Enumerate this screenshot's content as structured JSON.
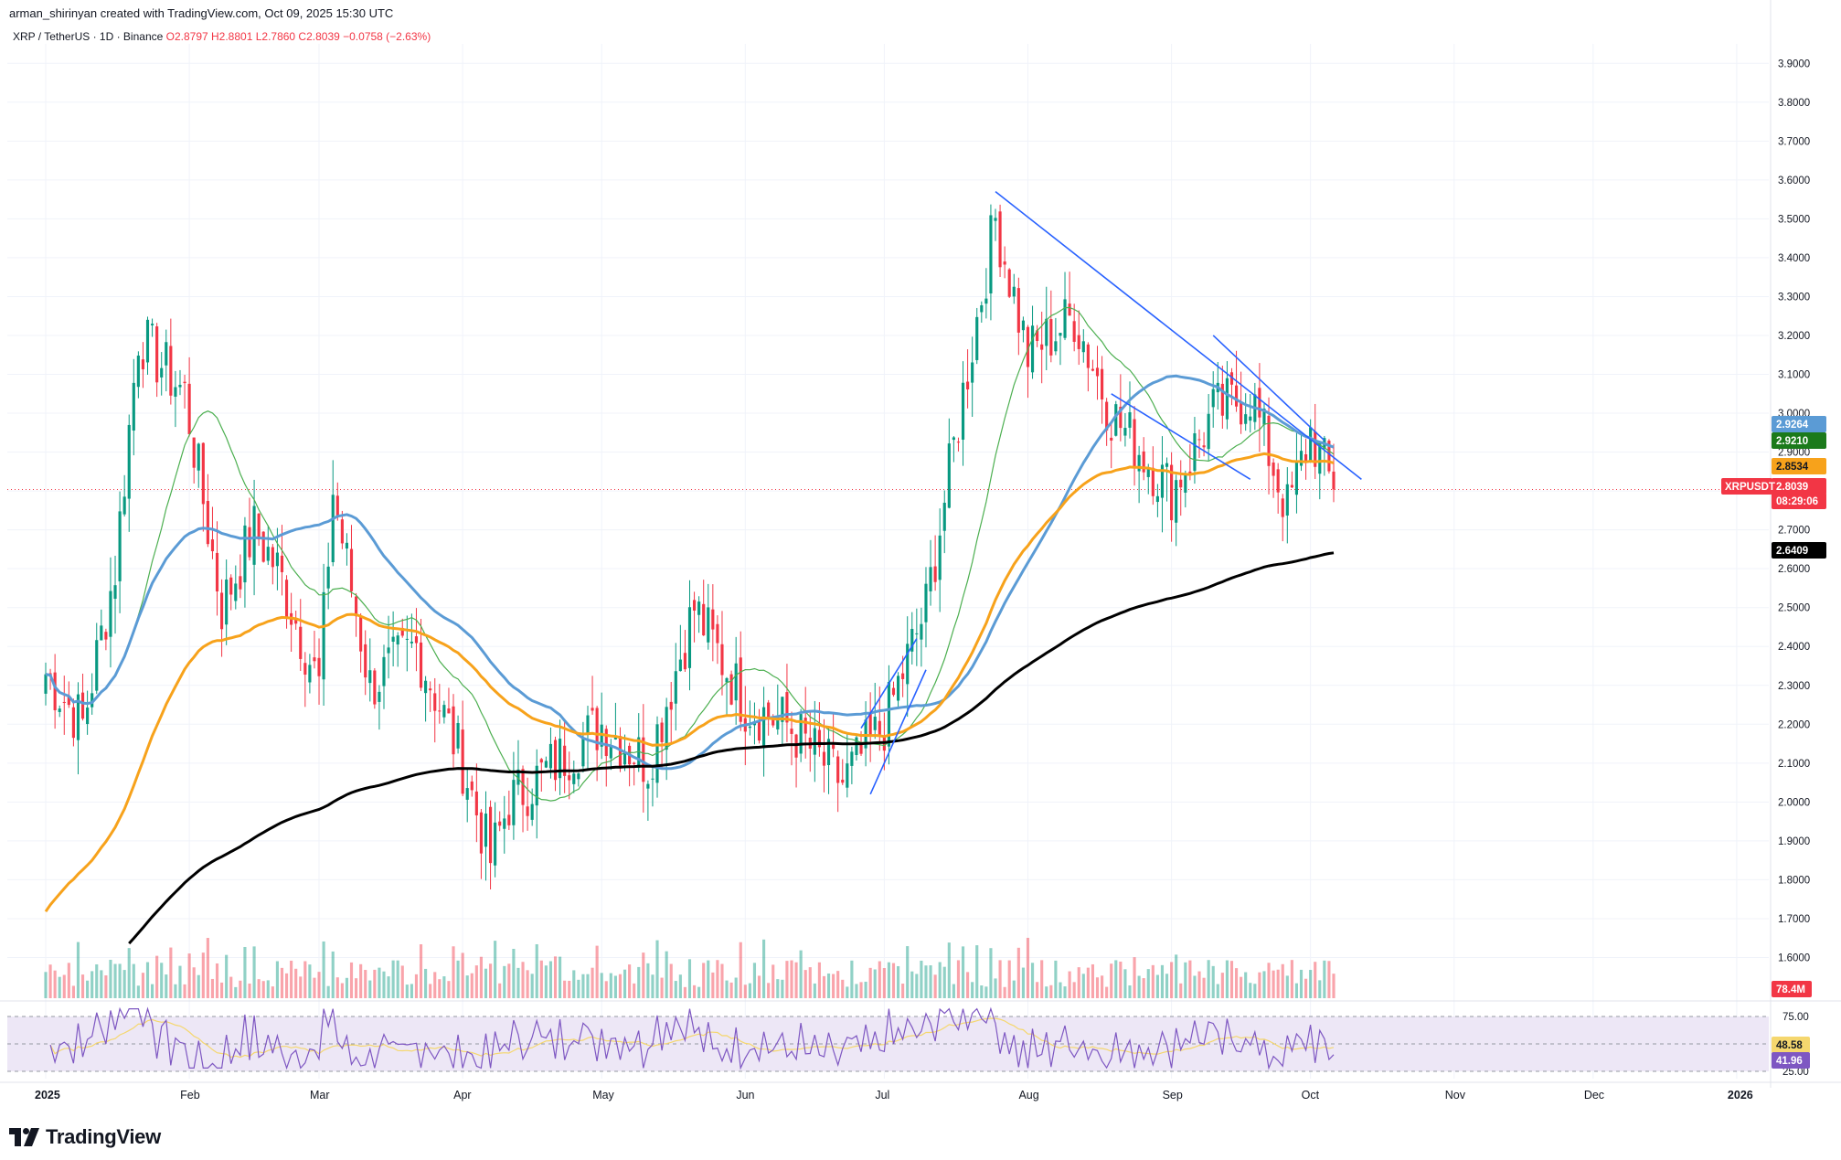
{
  "header": {
    "created_line": "arman_shirinyan created with TradingView.com, Oct 09, 2025 15:30 UTC",
    "symbol": "XRP / TetherUS · 1D · Binance",
    "ohlc": "O2.8797 H2.8801 L2.7860 C2.8039 −0.0758 (−2.63%)"
  },
  "brand": {
    "name": "TradingView",
    "logo_icon": "tradingview-logo-icon"
  },
  "colors": {
    "up": "#089981",
    "down": "#f23645",
    "ma_fast": "#4caf50",
    "ma_mid": "#5b9bd5",
    "ma_slow_orange": "#f7a21b",
    "ma_200": "#000000",
    "trendline": "#2962ff",
    "rsi": "#7e57c2",
    "rsi_bg": "#ede7f6"
  },
  "chart_data": {
    "type": "candlestick",
    "symbol": "XRPUSDT",
    "timeframe": "1D",
    "ylim": [
      1.5,
      3.95
    ],
    "y_ticks": [
      "3.9000",
      "3.8000",
      "3.7000",
      "3.6000",
      "3.5000",
      "3.4000",
      "3.3000",
      "3.2000",
      "3.1000",
      "3.0000",
      "2.9000",
      "2.8000",
      "2.7000",
      "2.6000",
      "2.5000",
      "2.4000",
      "2.3000",
      "2.2000",
      "2.1000",
      "2.0000",
      "1.9000",
      "1.8000",
      "1.7000",
      "1.6000"
    ],
    "x_ticks": [
      "2025",
      "Feb",
      "Mar",
      "Apr",
      "May",
      "Jun",
      "Jul",
      "Aug",
      "Sep",
      "Oct",
      "Nov",
      "Dec",
      "2026"
    ],
    "x_tick_day_index": [
      0,
      31,
      59,
      90,
      120,
      151,
      181,
      212,
      243,
      273,
      304,
      334,
      365
    ],
    "candles_monthly_keypoints": [
      {
        "day": 0,
        "close": 2.33
      },
      {
        "day": 8,
        "close": 2.2
      },
      {
        "day": 15,
        "close": 2.6
      },
      {
        "day": 20,
        "close": 3.2
      },
      {
        "day": 30,
        "close": 3.05
      },
      {
        "day": 38,
        "close": 2.5
      },
      {
        "day": 45,
        "close": 2.7
      },
      {
        "day": 50,
        "close": 2.6
      },
      {
        "day": 59,
        "close": 2.3
      },
      {
        "day": 62,
        "close": 2.8
      },
      {
        "day": 70,
        "close": 2.3
      },
      {
        "day": 80,
        "close": 2.4
      },
      {
        "day": 90,
        "close": 2.1
      },
      {
        "day": 96,
        "close": 1.85
      },
      {
        "day": 100,
        "close": 2.0
      },
      {
        "day": 110,
        "close": 2.1
      },
      {
        "day": 120,
        "close": 2.2
      },
      {
        "day": 130,
        "close": 2.1
      },
      {
        "day": 140,
        "close": 2.5
      },
      {
        "day": 151,
        "close": 2.25
      },
      {
        "day": 160,
        "close": 2.2
      },
      {
        "day": 172,
        "close": 2.05
      },
      {
        "day": 181,
        "close": 2.2
      },
      {
        "day": 190,
        "close": 2.5
      },
      {
        "day": 198,
        "close": 3.05
      },
      {
        "day": 205,
        "close": 3.5
      },
      {
        "day": 212,
        "close": 3.15
      },
      {
        "day": 222,
        "close": 3.25
      },
      {
        "day": 230,
        "close": 3.0
      },
      {
        "day": 243,
        "close": 2.8
      },
      {
        "day": 252,
        "close": 3.0
      },
      {
        "day": 260,
        "close": 3.05
      },
      {
        "day": 268,
        "close": 2.75
      },
      {
        "day": 273,
        "close": 2.95
      },
      {
        "day": 278,
        "close": 2.8039
      }
    ],
    "moving_averages": [
      {
        "name": "MA 200",
        "last": "2.6409"
      },
      {
        "name": "EMA",
        "last": "2.8534"
      },
      {
        "name": "SMA 50",
        "last": "2.9264"
      },
      {
        "name": "SMA 20",
        "last": "2.9210"
      }
    ],
    "price_badges": [
      {
        "label": "2.9264",
        "bg": "#5b9bd5",
        "fg": "#ffffff"
      },
      {
        "label": "2.9210",
        "bg": "#1b7a1b",
        "fg": "#ffffff"
      },
      {
        "label": "2.8534",
        "bg": "#f7a21b",
        "fg": "#131722"
      },
      {
        "label": "XRPUSDT",
        "bg": "#f23645",
        "fg": "#ffffff"
      },
      {
        "label": "2.8039",
        "bg": "#f23645",
        "fg": "#ffffff"
      },
      {
        "label": "08:29:06",
        "bg": "#f23645",
        "fg": "#ffffff"
      },
      {
        "label": "2.6409",
        "bg": "#000000",
        "fg": "#ffffff"
      }
    ],
    "volume_badge": "78.4M",
    "rsi": {
      "ticks": [
        "75.00",
        "25.00"
      ],
      "value": "41.96",
      "ma_value": "48.58",
      "ylim": [
        20,
        85
      ]
    }
  }
}
